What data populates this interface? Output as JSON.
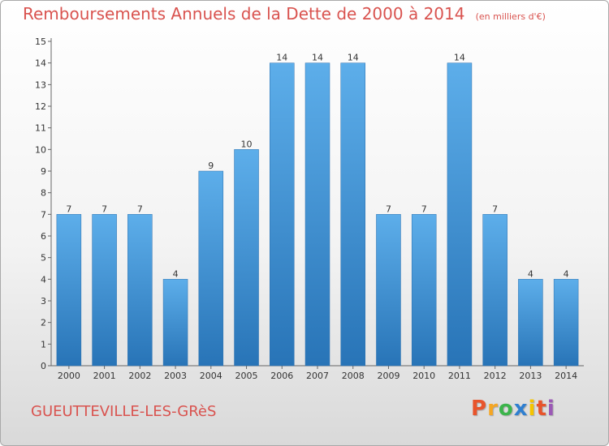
{
  "chart_data": {
    "type": "bar",
    "title": "Remboursements Annuels de la Dette de 2000 à 2014",
    "subtitle": "(en milliers d'€)",
    "categories": [
      "2000",
      "2001",
      "2002",
      "2003",
      "2004",
      "2005",
      "2006",
      "2007",
      "2008",
      "2009",
      "2010",
      "2011",
      "2012",
      "2013",
      "2014"
    ],
    "values": [
      7,
      7,
      7,
      4,
      9,
      10,
      14,
      14,
      14,
      7,
      7,
      14,
      7,
      4,
      4
    ],
    "ylim": [
      0,
      15
    ],
    "yticks": [
      0,
      1,
      2,
      3,
      4,
      5,
      6,
      7,
      8,
      9,
      10,
      11,
      12,
      13,
      14,
      15
    ],
    "grid": false,
    "bar_color": "#3b8fd6"
  },
  "footer": {
    "location": "GUEUTTEVILLE-LES-GRèS",
    "logo": "Proxiti",
    "logo_colors": [
      "#e8542b",
      "#f5a623",
      "#3cb44b",
      "#2f7fd0",
      "#f5c400",
      "#e8542b",
      "#9b59b6"
    ]
  }
}
